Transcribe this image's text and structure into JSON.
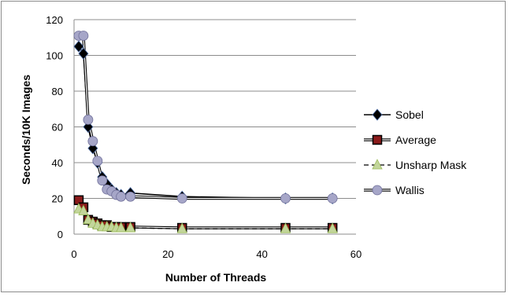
{
  "chart_data": {
    "type": "line",
    "title": "",
    "xlabel": "Number of Threads",
    "ylabel": "Seconds/10K Images",
    "xlim": [
      0,
      60
    ],
    "ylim": [
      0,
      120
    ],
    "xticks": [
      "0",
      "20",
      "40",
      "60"
    ],
    "yticks": [
      "0",
      "20",
      "40",
      "60",
      "80",
      "100",
      "120"
    ],
    "grid": "horizontal",
    "legend_position": "right",
    "series": [
      {
        "name": "Sobel",
        "marker": "diamond",
        "color": "#000000",
        "marker_fill": "#000000",
        "line_style": "solid",
        "points": [
          [
            1,
            105
          ],
          [
            2,
            101
          ],
          [
            3,
            60
          ],
          [
            4,
            48
          ],
          [
            5,
            40
          ],
          [
            6,
            32
          ],
          [
            7,
            28
          ],
          [
            8,
            25
          ],
          [
            9,
            23
          ],
          [
            10,
            22
          ],
          [
            12,
            23
          ],
          [
            23,
            21
          ],
          [
            45,
            20
          ],
          [
            55,
            20
          ]
        ]
      },
      {
        "name": "Average",
        "marker": "square",
        "color": "#000000",
        "marker_fill": "#8b1a1a",
        "line_style": "double",
        "points": [
          [
            1,
            19
          ],
          [
            2,
            15
          ],
          [
            3,
            8
          ],
          [
            4,
            7
          ],
          [
            5,
            6
          ],
          [
            6,
            5
          ],
          [
            7,
            5
          ],
          [
            8,
            4
          ],
          [
            9,
            4
          ],
          [
            10,
            4
          ],
          [
            12,
            4
          ],
          [
            23,
            3.5
          ],
          [
            45,
            3.5
          ],
          [
            55,
            3.5
          ]
        ]
      },
      {
        "name": "Unsharp Mask",
        "marker": "triangle",
        "color": "#000000",
        "marker_fill": "#c3d69b",
        "line_style": "dashed",
        "points": [
          [
            1,
            14
          ],
          [
            2,
            13
          ],
          [
            3,
            8
          ],
          [
            4,
            6
          ],
          [
            5,
            5
          ],
          [
            6,
            4
          ],
          [
            7,
            4
          ],
          [
            8,
            4
          ],
          [
            9,
            3.5
          ],
          [
            10,
            3.5
          ],
          [
            12,
            3.5
          ],
          [
            23,
            3
          ],
          [
            45,
            3
          ],
          [
            55,
            3
          ]
        ]
      },
      {
        "name": "Wallis",
        "marker": "circle",
        "color": "#000000",
        "marker_fill": "#a6a6c8",
        "line_style": "double",
        "points": [
          [
            1,
            111
          ],
          [
            2,
            111
          ],
          [
            3,
            64
          ],
          [
            4,
            52
          ],
          [
            5,
            41
          ],
          [
            6,
            30
          ],
          [
            7,
            25
          ],
          [
            8,
            24
          ],
          [
            9,
            22
          ],
          [
            10,
            21
          ],
          [
            12,
            21
          ],
          [
            23,
            20
          ],
          [
            45,
            20
          ],
          [
            55,
            20
          ]
        ]
      }
    ]
  }
}
